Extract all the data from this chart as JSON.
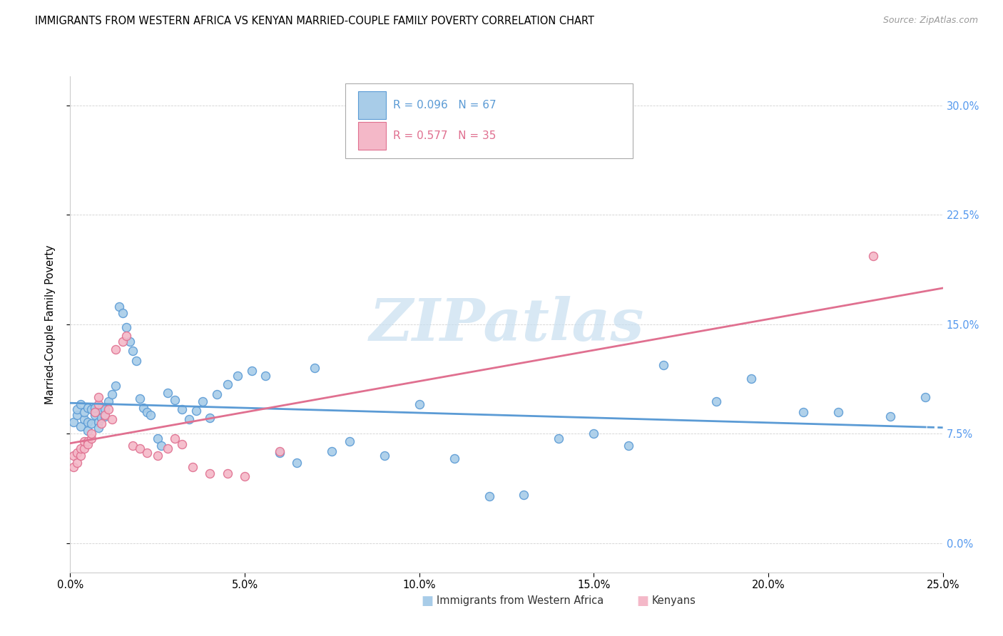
{
  "title": "IMMIGRANTS FROM WESTERN AFRICA VS KENYAN MARRIED-COUPLE FAMILY POVERTY CORRELATION CHART",
  "source": "Source: ZipAtlas.com",
  "ylabel": "Married-Couple Family Poverty",
  "legend_blue": "Immigrants from Western Africa",
  "legend_pink": "Kenyans",
  "R1": "0.096",
  "N1": "67",
  "R2": "0.577",
  "N2": "35",
  "xlim": [
    0.0,
    0.25
  ],
  "ylim": [
    -0.02,
    0.32
  ],
  "yticks": [
    0.0,
    0.075,
    0.15,
    0.225,
    0.3
  ],
  "xticks": [
    0.0,
    0.05,
    0.1,
    0.15,
    0.2,
    0.25
  ],
  "color_blue_fill": "#a8cce8",
  "color_blue_edge": "#5b9bd5",
  "color_pink_fill": "#f4b8c8",
  "color_pink_edge": "#e07090",
  "color_blue_line": "#5b9bd5",
  "color_pink_line": "#e07090",
  "color_right_axis": "#5599ee",
  "watermark_color": "#c8dff0",
  "blue_x": [
    0.001,
    0.002,
    0.002,
    0.003,
    0.003,
    0.004,
    0.004,
    0.005,
    0.005,
    0.005,
    0.006,
    0.006,
    0.007,
    0.007,
    0.008,
    0.008,
    0.009,
    0.009,
    0.01,
    0.01,
    0.011,
    0.012,
    0.013,
    0.014,
    0.015,
    0.016,
    0.017,
    0.018,
    0.019,
    0.02,
    0.021,
    0.022,
    0.023,
    0.025,
    0.026,
    0.028,
    0.03,
    0.032,
    0.034,
    0.036,
    0.038,
    0.04,
    0.042,
    0.045,
    0.048,
    0.052,
    0.056,
    0.06,
    0.065,
    0.07,
    0.075,
    0.08,
    0.09,
    0.1,
    0.11,
    0.12,
    0.13,
    0.14,
    0.15,
    0.16,
    0.17,
    0.185,
    0.195,
    0.21,
    0.22,
    0.235,
    0.245
  ],
  "blue_y": [
    0.083,
    0.088,
    0.092,
    0.08,
    0.095,
    0.085,
    0.09,
    0.077,
    0.083,
    0.093,
    0.082,
    0.092,
    0.088,
    0.093,
    0.083,
    0.079,
    0.092,
    0.086,
    0.092,
    0.087,
    0.097,
    0.102,
    0.108,
    0.162,
    0.158,
    0.148,
    0.138,
    0.132,
    0.125,
    0.099,
    0.093,
    0.09,
    0.088,
    0.072,
    0.067,
    0.103,
    0.098,
    0.092,
    0.085,
    0.091,
    0.097,
    0.086,
    0.102,
    0.109,
    0.115,
    0.118,
    0.115,
    0.062,
    0.055,
    0.12,
    0.063,
    0.07,
    0.06,
    0.095,
    0.058,
    0.032,
    0.033,
    0.072,
    0.075,
    0.067,
    0.122,
    0.097,
    0.113,
    0.09,
    0.09,
    0.087,
    0.1
  ],
  "pink_x": [
    0.001,
    0.001,
    0.002,
    0.002,
    0.003,
    0.003,
    0.004,
    0.004,
    0.005,
    0.005,
    0.006,
    0.006,
    0.007,
    0.008,
    0.008,
    0.009,
    0.01,
    0.011,
    0.012,
    0.013,
    0.015,
    0.016,
    0.018,
    0.02,
    0.022,
    0.025,
    0.028,
    0.03,
    0.032,
    0.035,
    0.04,
    0.045,
    0.05,
    0.06,
    0.23
  ],
  "pink_y": [
    0.052,
    0.06,
    0.055,
    0.062,
    0.06,
    0.065,
    0.065,
    0.07,
    0.07,
    0.068,
    0.072,
    0.075,
    0.09,
    0.095,
    0.1,
    0.082,
    0.088,
    0.092,
    0.085,
    0.133,
    0.138,
    0.142,
    0.067,
    0.065,
    0.062,
    0.06,
    0.065,
    0.072,
    0.068,
    0.052,
    0.048,
    0.048,
    0.046,
    0.063,
    0.197
  ]
}
